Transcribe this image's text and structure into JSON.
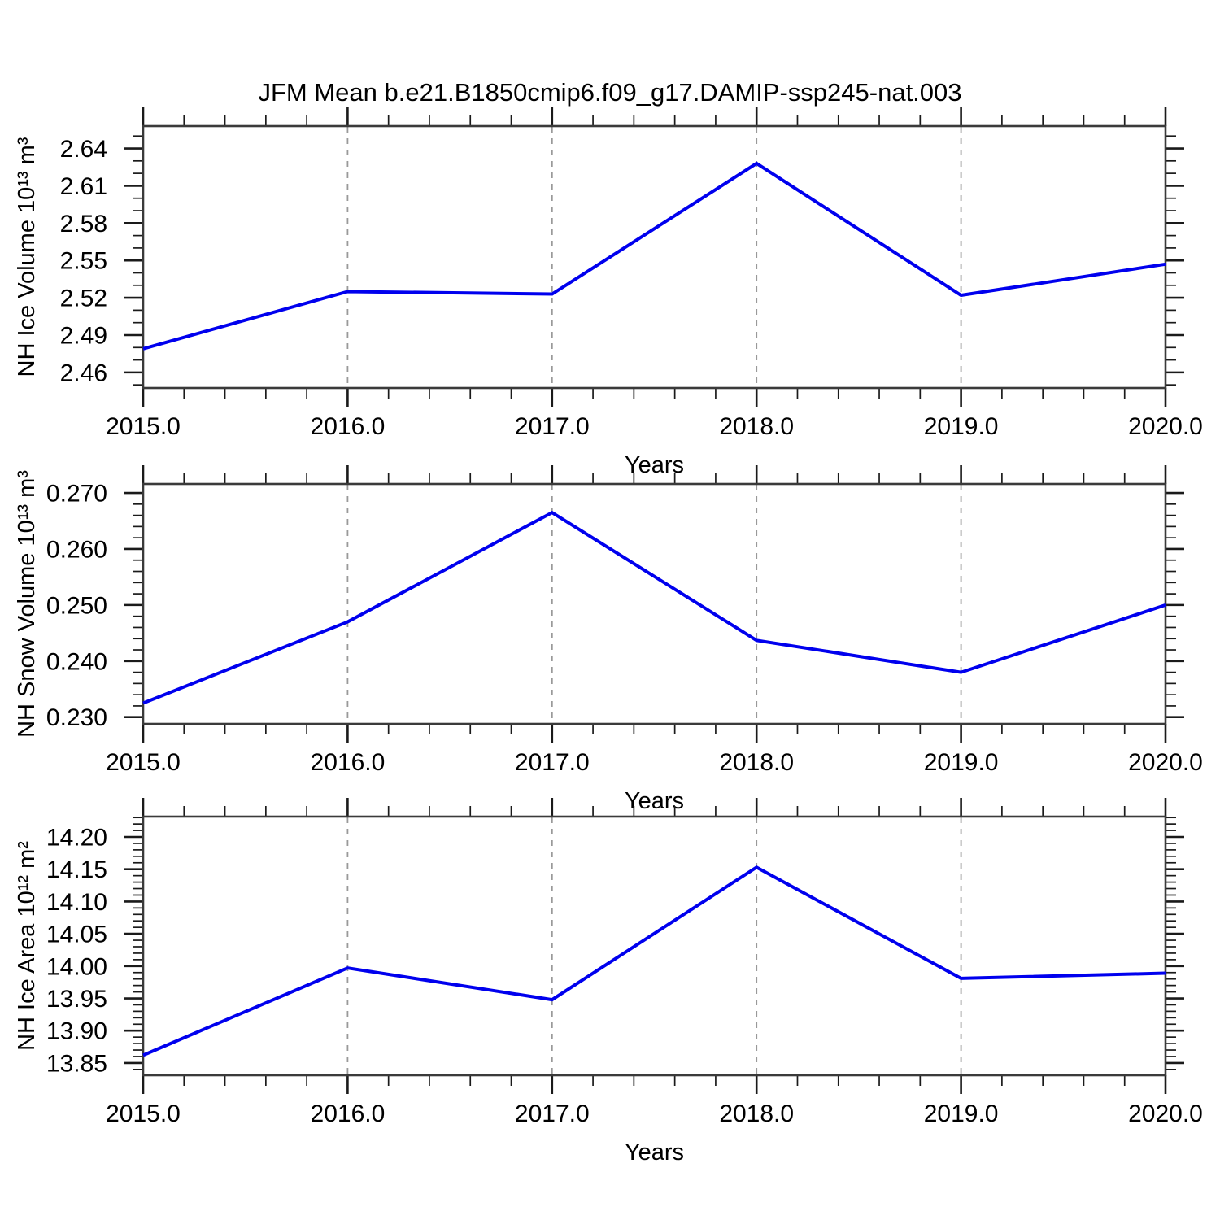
{
  "title": "JFM Mean b.e21.B1850cmip6.f09_g17.DAMIP-ssp245-nat.003",
  "style": {
    "line_color": "#0000EE",
    "grid_color": "#999999",
    "frame_color": "#3A3A3A",
    "tick_color": "#1A1A1A",
    "text_color": "#000000",
    "background": "#FFFFFF",
    "grid_dash": "7 7"
  },
  "chart_data": [
    {
      "id": "nh-ice-volume",
      "type": "line",
      "xlabel": "Years",
      "ylabel": "NH Ice Volume 10¹³ m³",
      "x": [
        2015.0,
        2016.0,
        2017.0,
        2018.0,
        2019.0,
        2020.0
      ],
      "y": [
        2.479,
        2.525,
        2.523,
        2.628,
        2.522,
        2.547
      ],
      "xlim": [
        2015.0,
        2020.0
      ],
      "ylim": [
        2.4475,
        2.658
      ],
      "xticks": [
        2015.0,
        2016.0,
        2017.0,
        2018.0,
        2019.0,
        2020.0
      ],
      "xtick_labels": [
        "2015.0",
        "2016.0",
        "2017.0",
        "2018.0",
        "2019.0",
        "2020.0"
      ],
      "x_minor_step": 0.2,
      "yticks": [
        2.46,
        2.49,
        2.52,
        2.55,
        2.58,
        2.61,
        2.64
      ],
      "ytick_labels": [
        "2.46",
        "2.49",
        "2.52",
        "2.55",
        "2.58",
        "2.61",
        "2.64"
      ],
      "y_minor_step": 0.01,
      "gridlines_x": [
        2016.0,
        2017.0,
        2018.0,
        2019.0
      ],
      "grid": true,
      "legend": "none"
    },
    {
      "id": "nh-snow-volume",
      "type": "line",
      "xlabel": "Years",
      "ylabel": "NH Snow Volume 10¹³ m³",
      "x": [
        2015.0,
        2016.0,
        2017.0,
        2018.0,
        2019.0,
        2020.0
      ],
      "y": [
        0.2325,
        0.247,
        0.2665,
        0.2437,
        0.238,
        0.25
      ],
      "xlim": [
        2015.0,
        2020.0
      ],
      "ylim": [
        0.2288,
        0.2716
      ],
      "xticks": [
        2015.0,
        2016.0,
        2017.0,
        2018.0,
        2019.0,
        2020.0
      ],
      "xtick_labels": [
        "2015.0",
        "2016.0",
        "2017.0",
        "2018.0",
        "2019.0",
        "2020.0"
      ],
      "x_minor_step": 0.2,
      "yticks": [
        0.23,
        0.24,
        0.25,
        0.26,
        0.27
      ],
      "ytick_labels": [
        "0.230",
        "0.240",
        "0.250",
        "0.260",
        "0.270"
      ],
      "y_minor_step": 0.002,
      "gridlines_x": [
        2016.0,
        2017.0,
        2018.0,
        2019.0
      ],
      "grid": true,
      "legend": "none"
    },
    {
      "id": "nh-ice-area",
      "type": "line",
      "xlabel": "Years",
      "ylabel": "NH Ice Area 10¹² m²",
      "x": [
        2015.0,
        2016.0,
        2017.0,
        2018.0,
        2019.0,
        2020.0
      ],
      "y": [
        13.862,
        13.997,
        13.948,
        14.153,
        13.981,
        13.989
      ],
      "xlim": [
        2015.0,
        2020.0
      ],
      "ylim": [
        13.831,
        14.2315
      ],
      "xticks": [
        2015.0,
        2016.0,
        2017.0,
        2018.0,
        2019.0,
        2020.0
      ],
      "xtick_labels": [
        "2015.0",
        "2016.0",
        "2017.0",
        "2018.0",
        "2019.0",
        "2020.0"
      ],
      "x_minor_step": 0.2,
      "yticks": [
        13.85,
        13.9,
        13.95,
        14.0,
        14.05,
        14.1,
        14.15,
        14.2
      ],
      "ytick_labels": [
        "13.85",
        "13.90",
        "13.95",
        "14.00",
        "14.05",
        "14.10",
        "14.15",
        "14.20"
      ],
      "y_minor_step": 0.01,
      "gridlines_x": [
        2016.0,
        2017.0,
        2018.0,
        2019.0
      ],
      "grid": true,
      "legend": "none"
    }
  ]
}
